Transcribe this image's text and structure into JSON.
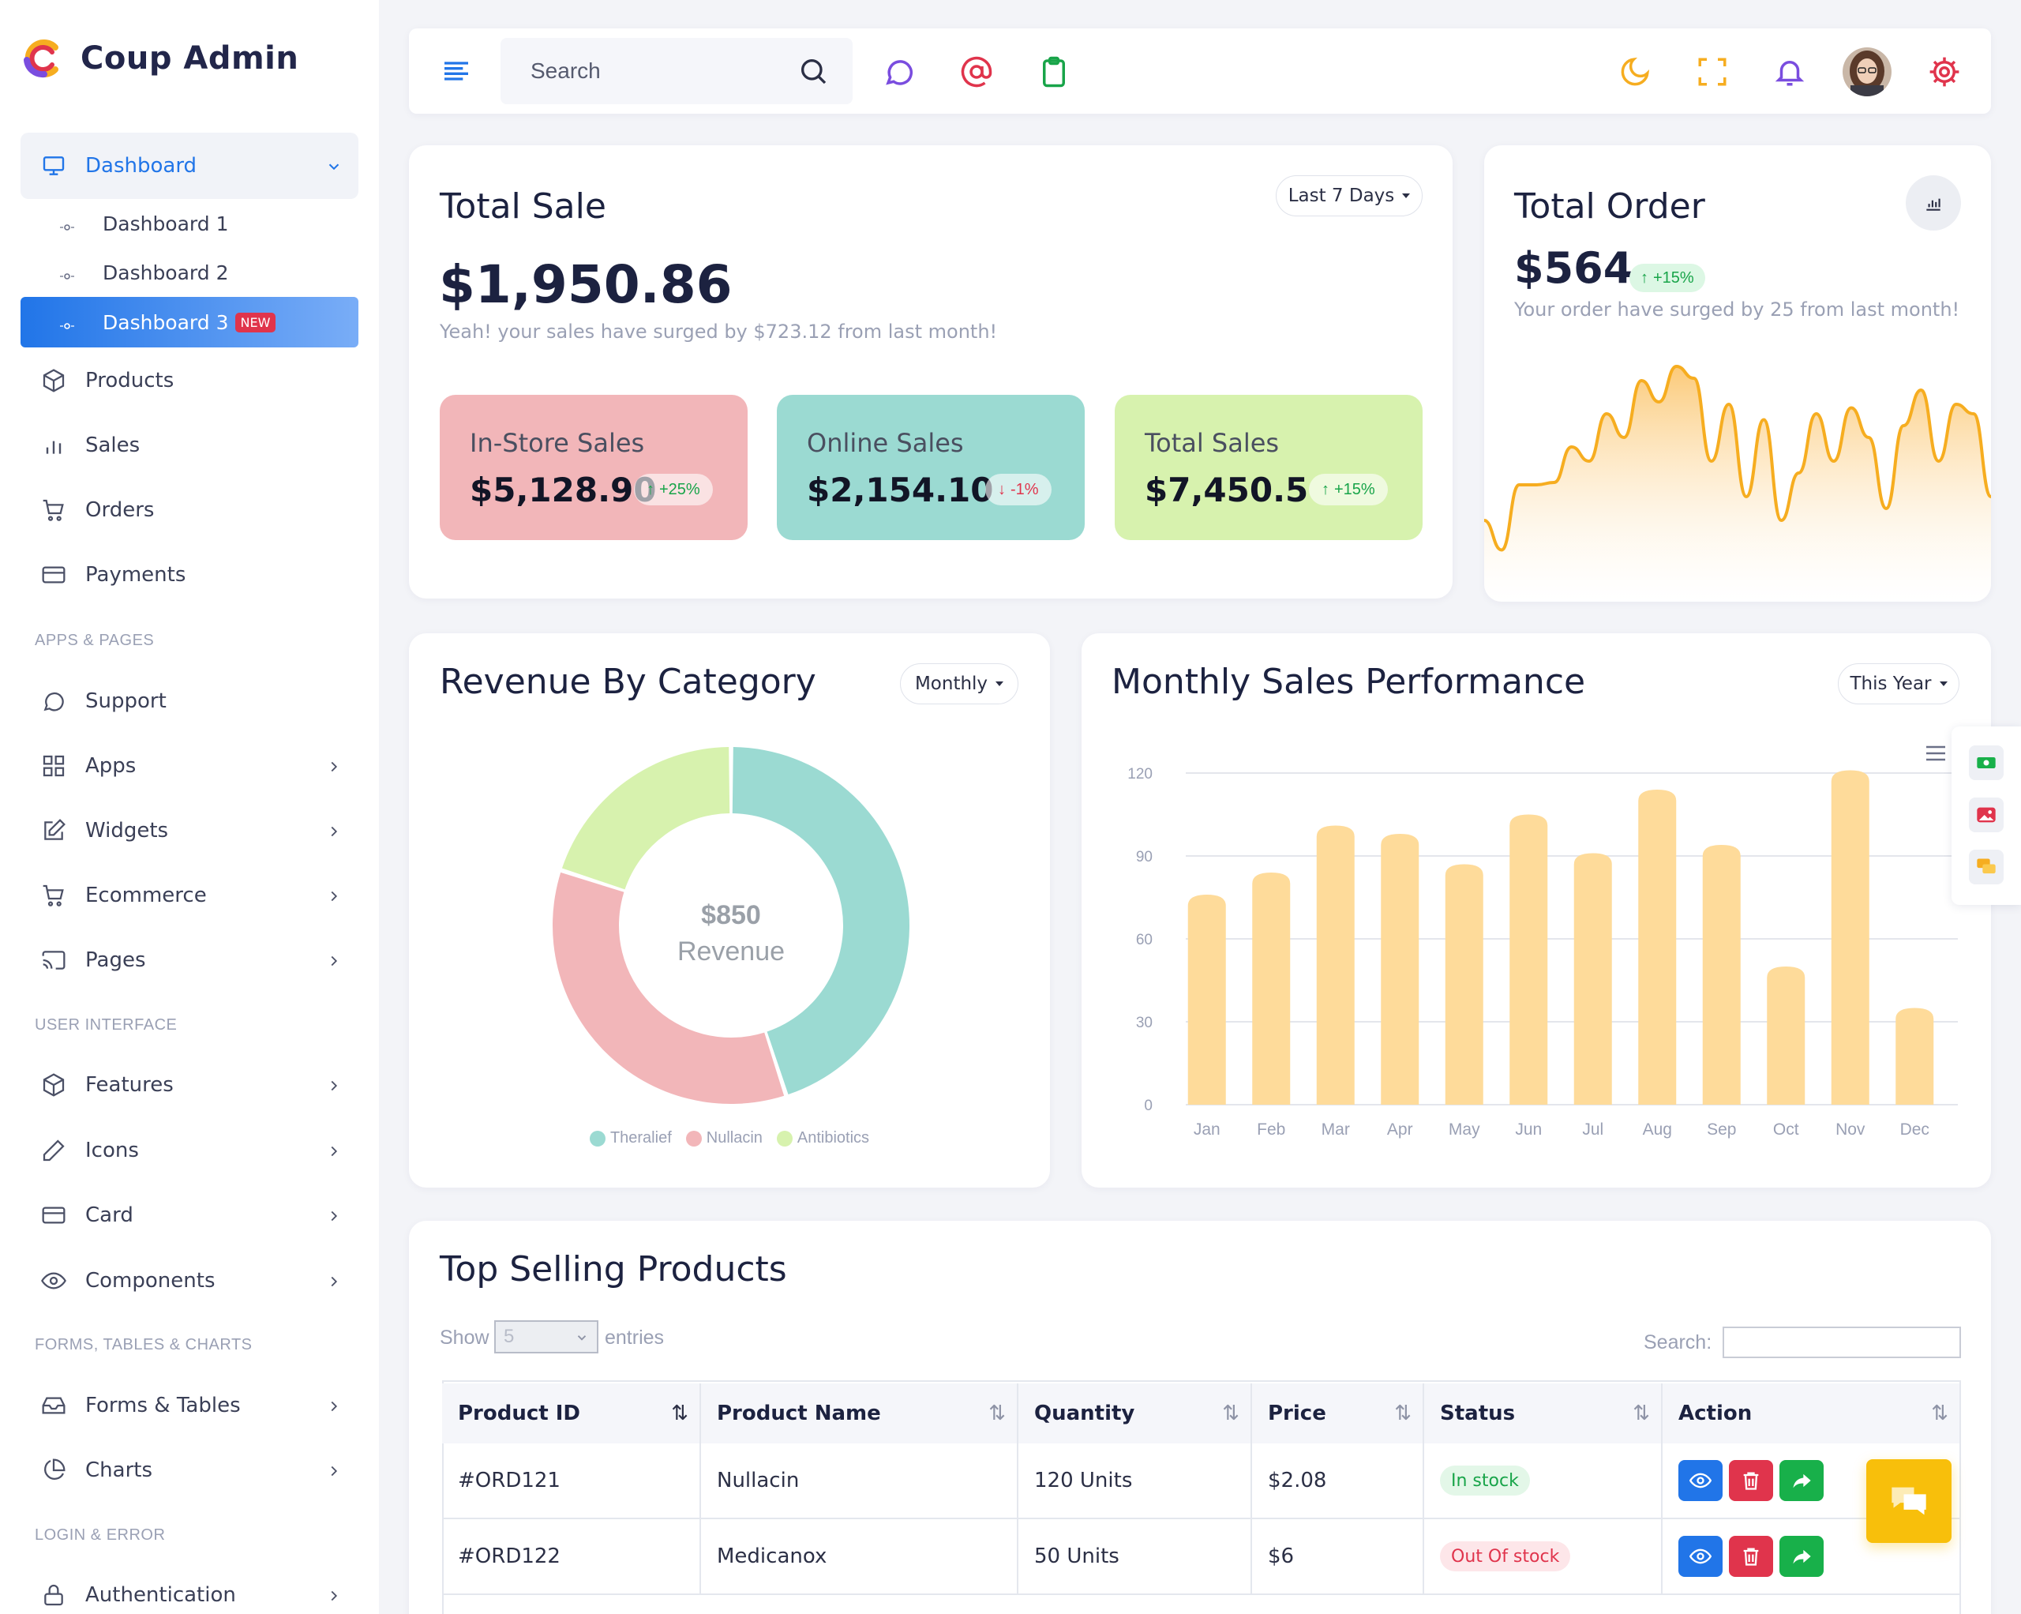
{
  "app": {
    "name": "Coup Admin"
  },
  "sidebar": {
    "dashboard": {
      "label": "Dashboard",
      "sub": [
        "Dashboard 1",
        "Dashboard 2",
        "Dashboard 3"
      ],
      "new_badge": "NEW"
    },
    "main": [
      "Products",
      "Sales",
      "Orders",
      "Payments"
    ],
    "sections": [
      "APPS & PAGES",
      "USER INTERFACE",
      "FORMS, TABLES & CHARTS",
      "LOGIN & ERROR"
    ],
    "apps": [
      "Support",
      "Apps",
      "Widgets",
      "Ecommerce",
      "Pages"
    ],
    "ui": [
      "Features",
      "Icons",
      "Card",
      "Components"
    ],
    "forms": [
      "Forms & Tables",
      "Charts"
    ],
    "login": [
      "Authentication"
    ]
  },
  "header": {
    "search_placeholder": "Search"
  },
  "total_sale": {
    "title": "Total Sale",
    "filter": "Last 7 Days",
    "amount": "$1,950.86",
    "note": "Yeah! your sales have surged by $723.12 from last month!",
    "boxes": [
      {
        "label": "In-Store Sales",
        "value": "$5,128.90",
        "change": "+25%",
        "dir": "up",
        "color": "#f2b6b9"
      },
      {
        "label": "Online Sales",
        "value": "$2,154.10",
        "change": "-1%",
        "dir": "down",
        "color": "#9bdad2"
      },
      {
        "label": "Total Sales",
        "value": "$7,450.5",
        "change": "+15%",
        "dir": "up",
        "color": "#d7f2ae"
      }
    ]
  },
  "total_order": {
    "title": "Total Order",
    "amount": "$564",
    "change": "+15%",
    "note": "Your order have surged by 25 from last month!"
  },
  "revenue": {
    "title": "Revenue By Category",
    "filter": "Monthly",
    "center_value": "$850",
    "center_label": "Revenue"
  },
  "monthly": {
    "title": "Monthly Sales Performance",
    "filter": "This Year"
  },
  "products": {
    "title": "Top Selling Products",
    "show_label": "Show",
    "show_value": "5",
    "entries_label": "entries",
    "search_label": "Search:",
    "columns": [
      "Product ID",
      "Product Name",
      "Quantity",
      "Price",
      "Status",
      "Action"
    ],
    "rows": [
      {
        "id": "#ORD121",
        "name": "Nullacin",
        "qty": "120 Units",
        "price": "$2.08",
        "status": "In stock",
        "status_type": "in"
      },
      {
        "id": "#ORD122",
        "name": "Medicanox",
        "qty": "50 Units",
        "price": "$6",
        "status": "Out Of stock",
        "status_type": "out"
      }
    ]
  },
  "chart_data": [
    {
      "type": "pie",
      "categories": [
        "Theralief",
        "Nullacin",
        "Antibiotics"
      ],
      "values": [
        45,
        35,
        20
      ],
      "colors": [
        "#9bdad2",
        "#f2b6b9",
        "#d7f2ae"
      ],
      "legend": "bottom"
    },
    {
      "type": "bar",
      "categories": [
        "Jan",
        "Feb",
        "Mar",
        "Apr",
        "May",
        "Jun",
        "Jul",
        "Aug",
        "Sep",
        "Oct",
        "Nov",
        "Dec"
      ],
      "values": [
        76,
        84,
        101,
        98,
        87,
        105,
        91,
        114,
        94,
        50,
        121,
        35
      ],
      "ylim": [
        0,
        120
      ],
      "yticks": [
        0,
        30,
        60,
        90,
        120
      ],
      "grid": true,
      "color": "#fedb9a"
    },
    {
      "type": "area",
      "x": [
        0,
        1,
        2,
        3,
        4,
        5,
        6,
        7,
        8,
        9,
        10,
        11,
        12,
        13,
        14,
        15,
        16,
        17,
        18,
        19,
        20,
        21,
        22,
        23,
        24,
        25,
        26,
        27,
        28,
        29
      ],
      "values": [
        30,
        5,
        60,
        60,
        62,
        92,
        80,
        120,
        100,
        148,
        130,
        160,
        150,
        80,
        128,
        50,
        115,
        30,
        70,
        120,
        80,
        125,
        100,
        40,
        110,
        140,
        80,
        128,
        120,
        50
      ],
      "color": "#f6ad20"
    }
  ]
}
